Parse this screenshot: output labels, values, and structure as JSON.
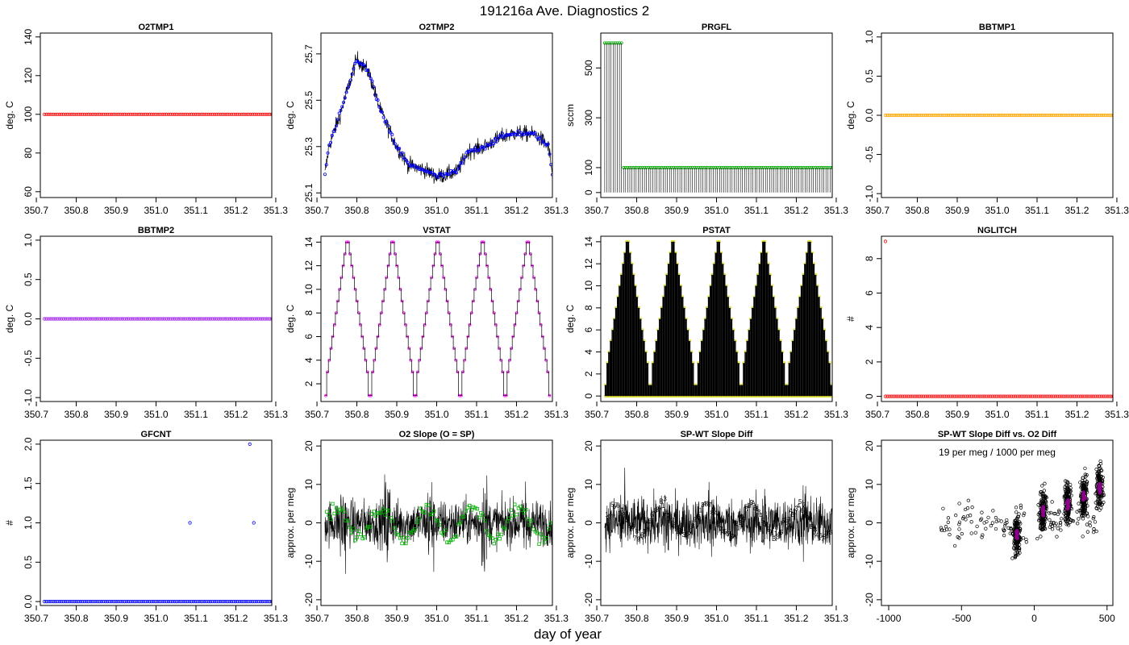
{
  "page": {
    "title": "191216a   Ave. Diagnostics 2",
    "xlabel": "day of year"
  },
  "colors": {
    "red": "#ff0000",
    "blue": "#0000ff",
    "green": "#00b000",
    "orange": "#ffa500",
    "purple": "#a020f0",
    "magenta": "#ff00ff",
    "yellow": "#e0e000",
    "darkorange": "#ff8c00",
    "darkmagenta": "#8b008b",
    "black": "#000000"
  },
  "chart_data": [
    {
      "id": "o2tmp1",
      "type": "scatter",
      "title": "O2TMP1",
      "ylabel": "deg. C",
      "xlim": [
        350.71,
        351.29
      ],
      "ylim": [
        57,
        142
      ],
      "xticks": [
        350.7,
        350.8,
        350.9,
        351.0,
        351.1,
        351.2,
        351.3
      ],
      "xtick_labels": [
        "350.7",
        "350.8",
        "350.9",
        "351.0",
        "351.1",
        "351.2",
        "351.3"
      ],
      "yticks": [
        60,
        80,
        100,
        120,
        140
      ],
      "ytick_labels": [
        "60",
        "80",
        "100",
        "120",
        "140"
      ],
      "series": [
        {
          "kind": "points",
          "color": "red",
          "x_start": 350.72,
          "x_end": 351.29,
          "n": 120,
          "constant": 100
        }
      ]
    },
    {
      "id": "o2tmp2",
      "type": "line",
      "title": "O2TMP2",
      "ylabel": "deg. C",
      "xlim": [
        350.71,
        351.29
      ],
      "ylim": [
        25.08,
        25.79
      ],
      "xticks": [
        350.7,
        350.8,
        350.9,
        351.0,
        351.1,
        351.2,
        351.3
      ],
      "xtick_labels": [
        "350.7",
        "350.8",
        "350.9",
        "351.0",
        "351.1",
        "351.2",
        "351.3"
      ],
      "yticks": [
        25.1,
        25.3,
        25.5,
        25.7
      ],
      "ytick_labels": [
        "25.1",
        "25.3",
        "25.5",
        "25.7"
      ],
      "series": [
        {
          "kind": "noisy",
          "color": "black",
          "x": [
            350.72,
            350.73,
            350.76,
            350.8,
            350.83,
            350.86,
            350.9,
            350.93,
            350.97,
            351.0,
            351.05,
            351.08,
            351.12,
            351.16,
            351.2,
            351.25,
            351.28,
            351.29
          ],
          "y": [
            25.18,
            25.3,
            25.45,
            25.68,
            25.62,
            25.45,
            25.3,
            25.22,
            25.2,
            25.17,
            25.19,
            25.28,
            25.3,
            25.34,
            25.36,
            25.35,
            25.3,
            25.18
          ],
          "noise": 0.06,
          "n": 600
        },
        {
          "kind": "points",
          "color": "blue",
          "x": [
            350.72,
            350.73,
            350.76,
            350.8,
            350.83,
            350.86,
            350.9,
            350.93,
            350.97,
            351.0,
            351.05,
            351.08,
            351.12,
            351.16,
            351.2,
            351.25,
            351.28,
            351.29
          ],
          "y": [
            25.18,
            25.3,
            25.45,
            25.68,
            25.62,
            25.45,
            25.3,
            25.22,
            25.2,
            25.17,
            25.19,
            25.28,
            25.3,
            25.34,
            25.36,
            25.35,
            25.3,
            25.18
          ],
          "noise": 0.02,
          "n": 160
        }
      ]
    },
    {
      "id": "prgfl",
      "type": "line",
      "title": "PRGFL",
      "ylabel": "sccm",
      "xlim": [
        350.71,
        351.29
      ],
      "ylim": [
        -20,
        640
      ],
      "xticks": [
        350.7,
        350.8,
        350.9,
        351.0,
        351.1,
        351.2,
        351.3
      ],
      "xtick_labels": [
        "350.7",
        "350.8",
        "350.9",
        "351.0",
        "351.1",
        "351.2",
        "351.3"
      ],
      "yticks": [
        0,
        100,
        300,
        500
      ],
      "ytick_labels": [
        "0",
        "100",
        "300",
        "500"
      ],
      "series": [
        {
          "kind": "spikes",
          "color": "black",
          "points_color": "green",
          "x_start": 350.72,
          "x_end": 351.29,
          "n": 110,
          "high_until": 350.765,
          "high_value": 600,
          "low_value": 100,
          "base": 0
        }
      ]
    },
    {
      "id": "bbtmp1",
      "type": "scatter",
      "title": "BBTMP1",
      "ylabel": "deg. C",
      "xlim": [
        350.71,
        351.29
      ],
      "ylim": [
        -1.05,
        1.05
      ],
      "xticks": [
        350.7,
        350.8,
        350.9,
        351.0,
        351.1,
        351.2,
        351.3
      ],
      "xtick_labels": [
        "350.7",
        "350.8",
        "350.9",
        "351.0",
        "351.1",
        "351.2",
        "351.3"
      ],
      "yticks": [
        -1.0,
        -0.5,
        0.0,
        0.5,
        1.0
      ],
      "ytick_labels": [
        "-1.0",
        "-0.5",
        "0.0",
        "0.5",
        "1.0"
      ],
      "series": [
        {
          "kind": "points",
          "color": "orange",
          "x_start": 350.72,
          "x_end": 351.29,
          "n": 120,
          "constant": 0
        }
      ]
    },
    {
      "id": "bbtmp2",
      "type": "scatter",
      "title": "BBTMP2",
      "ylabel": "deg. C",
      "xlim": [
        350.71,
        351.29
      ],
      "ylim": [
        -1.05,
        1.05
      ],
      "xticks": [
        350.7,
        350.8,
        350.9,
        351.0,
        351.1,
        351.2,
        351.3
      ],
      "xtick_labels": [
        "350.7",
        "350.8",
        "350.9",
        "351.0",
        "351.1",
        "351.2",
        "351.3"
      ],
      "yticks": [
        -1.0,
        -0.5,
        0.0,
        0.5,
        1.0
      ],
      "ytick_labels": [
        "-1.0",
        "-0.5",
        "0.0",
        "0.5",
        "1.0"
      ],
      "series": [
        {
          "kind": "points",
          "color": "purple",
          "x_start": 350.72,
          "x_end": 351.29,
          "n": 120,
          "constant": 0
        }
      ]
    },
    {
      "id": "vstat",
      "type": "line",
      "title": "VSTAT",
      "ylabel": "deg. C",
      "xlim": [
        350.71,
        351.29
      ],
      "ylim": [
        0.5,
        14.5
      ],
      "xticks": [
        350.7,
        350.8,
        350.9,
        351.0,
        351.1,
        351.2,
        351.3
      ],
      "xtick_labels": [
        "350.7",
        "350.8",
        "350.9",
        "351.0",
        "351.1",
        "351.2",
        "351.3"
      ],
      "yticks": [
        2,
        4,
        6,
        8,
        10,
        12,
        14
      ],
      "ytick_labels": [
        "2",
        "4",
        "6",
        "8",
        "10",
        "12",
        "14"
      ],
      "series": [
        {
          "kind": "staircase",
          "color": "black",
          "points_color": "magenta",
          "x_start": 350.72,
          "x_end": 351.285,
          "cycles": 5,
          "levels": [
            1,
            3,
            4,
            5,
            6,
            7,
            8,
            9,
            10,
            11,
            12,
            13,
            14,
            14,
            13,
            12,
            11,
            10,
            9,
            8,
            7,
            6,
            5,
            4,
            3,
            1
          ]
        }
      ]
    },
    {
      "id": "pstat",
      "type": "line",
      "title": "PSTAT",
      "ylabel": "deg. C",
      "xlim": [
        350.71,
        351.29
      ],
      "ylim": [
        -0.5,
        14.5
      ],
      "xticks": [
        350.7,
        350.8,
        350.9,
        351.0,
        351.1,
        351.2,
        351.3
      ],
      "xtick_labels": [
        "350.7",
        "350.8",
        "350.9",
        "351.0",
        "351.1",
        "351.2",
        "351.3"
      ],
      "yticks": [
        0,
        2,
        4,
        6,
        8,
        10,
        12,
        14
      ],
      "ytick_labels": [
        "0",
        "2",
        "4",
        "6",
        "8",
        "10",
        "12",
        "14"
      ],
      "series": [
        {
          "kind": "spike-staircase",
          "color": "black",
          "points_color": "yellow",
          "x_start": 350.72,
          "x_end": 351.29,
          "cycles": 5,
          "levels": [
            1,
            3,
            4,
            5,
            6,
            7,
            8,
            9,
            10,
            11,
            12,
            13,
            14,
            14,
            13,
            12,
            11,
            10,
            9,
            8,
            7,
            6,
            5,
            4,
            3,
            1
          ]
        }
      ]
    },
    {
      "id": "nglitch",
      "type": "scatter",
      "title": "NGLITCH",
      "ylabel": "#",
      "xlim": [
        350.71,
        351.29
      ],
      "ylim": [
        -0.3,
        9.3
      ],
      "xticks": [
        350.7,
        350.8,
        350.9,
        351.0,
        351.1,
        351.2,
        351.3
      ],
      "xtick_labels": [
        "350.7",
        "350.8",
        "350.9",
        "351.0",
        "351.1",
        "351.2",
        "351.3"
      ],
      "yticks": [
        0,
        2,
        4,
        6,
        8
      ],
      "ytick_labels": [
        "0",
        "2",
        "4",
        "6",
        "8"
      ],
      "series": [
        {
          "kind": "points",
          "color": "red",
          "x_start": 350.72,
          "x_end": 351.29,
          "n": 120,
          "constant": 0,
          "outliers": [
            {
              "x": 350.72,
              "y": 9
            }
          ]
        }
      ]
    },
    {
      "id": "gfcnt",
      "type": "scatter",
      "title": "GFCNT",
      "ylabel": "#",
      "xlim": [
        350.71,
        351.29
      ],
      "ylim": [
        -0.05,
        2.05
      ],
      "xticks": [
        350.7,
        350.8,
        350.9,
        351.0,
        351.1,
        351.2,
        351.3
      ],
      "xtick_labels": [
        "350.7",
        "350.8",
        "350.9",
        "351.0",
        "351.1",
        "351.2",
        "351.3"
      ],
      "yticks": [
        0.0,
        0.5,
        1.0,
        1.5,
        2.0
      ],
      "ytick_labels": [
        "0.0",
        "0.5",
        "1.0",
        "1.5",
        "2.0"
      ],
      "series": [
        {
          "kind": "points",
          "color": "blue",
          "x_start": 350.72,
          "x_end": 351.29,
          "n": 120,
          "constant": 0,
          "outliers": [
            {
              "x": 351.085,
              "y": 1
            },
            {
              "x": 351.235,
              "y": 2
            },
            {
              "x": 351.245,
              "y": 1
            }
          ]
        }
      ]
    },
    {
      "id": "o2slope",
      "type": "line",
      "title": "O2 Slope (O = SP)",
      "ylabel": "approx. per meg",
      "xlim": [
        350.71,
        351.29
      ],
      "ylim": [
        -21.5,
        21.5
      ],
      "xticks": [
        350.7,
        350.8,
        350.9,
        351.0,
        351.1,
        351.2,
        351.3
      ],
      "xtick_labels": [
        "350.7",
        "350.8",
        "350.9",
        "351.0",
        "351.1",
        "351.2",
        "351.3"
      ],
      "yticks": [
        -20,
        -10,
        0,
        10,
        20
      ],
      "ytick_labels": [
        "-20",
        "-10",
        "0",
        "10",
        "20"
      ],
      "series": [
        {
          "kind": "noise-band",
          "color": "black",
          "points_color": "green",
          "x_start": 350.72,
          "x_end": 351.29,
          "spread": 10,
          "bursts": [
            350.765,
            350.875,
            350.985,
            351.12,
            351.225
          ],
          "burst_spread": 22,
          "n": 900
        }
      ]
    },
    {
      "id": "spwt",
      "type": "line",
      "title": "SP-WT Slope Diff",
      "ylabel": "approx. per meg",
      "xlim": [
        350.71,
        351.29
      ],
      "ylim": [
        -21.5,
        21.5
      ],
      "xticks": [
        350.7,
        350.8,
        350.9,
        351.0,
        351.1,
        351.2,
        351.3
      ],
      "xtick_labels": [
        "350.7",
        "350.8",
        "350.9",
        "351.0",
        "351.1",
        "351.2",
        "351.3"
      ],
      "yticks": [
        -20,
        -10,
        0,
        10,
        20
      ],
      "ytick_labels": [
        "-20",
        "-10",
        "0",
        "10",
        "20"
      ],
      "series": [
        {
          "kind": "noise-band",
          "color": "black",
          "points_color": "darkorange",
          "x_start": 350.72,
          "x_end": 351.29,
          "spread": 11,
          "bursts": [
            350.765,
            350.875,
            350.985,
            351.12,
            351.225
          ],
          "burst_spread": 20,
          "n": 900,
          "label_points": true
        }
      ]
    },
    {
      "id": "spwt_vs_o2",
      "type": "scatter",
      "title": "SP-WT Slope Diff vs. O2 Diff",
      "ylabel": "approx. per meg",
      "annotation": "19 per meg / 1000 per meg",
      "xlim": [
        -1050,
        540
      ],
      "ylim": [
        -21.5,
        21.5
      ],
      "xticks": [
        -1000,
        -500,
        0,
        500
      ],
      "xtick_labels": [
        "-1000",
        "-500",
        "0",
        "500"
      ],
      "yticks": [
        -20,
        -10,
        0,
        10,
        20
      ],
      "ytick_labels": [
        "-20",
        "-10",
        "0",
        "10",
        "20"
      ],
      "series": [
        {
          "kind": "cloud",
          "color": "black",
          "centers_color": "darkmagenta",
          "clusters": [
            {
              "x": -120,
              "y": -3
            },
            {
              "x": 60,
              "y": 3
            },
            {
              "x": 230,
              "y": 5
            },
            {
              "x": 340,
              "y": 7
            },
            {
              "x": 450,
              "y": 9
            }
          ],
          "scatter_region": {
            "x": [
              -650,
              480
            ],
            "y": [
              -20,
              20
            ]
          },
          "n": 900
        }
      ]
    }
  ]
}
